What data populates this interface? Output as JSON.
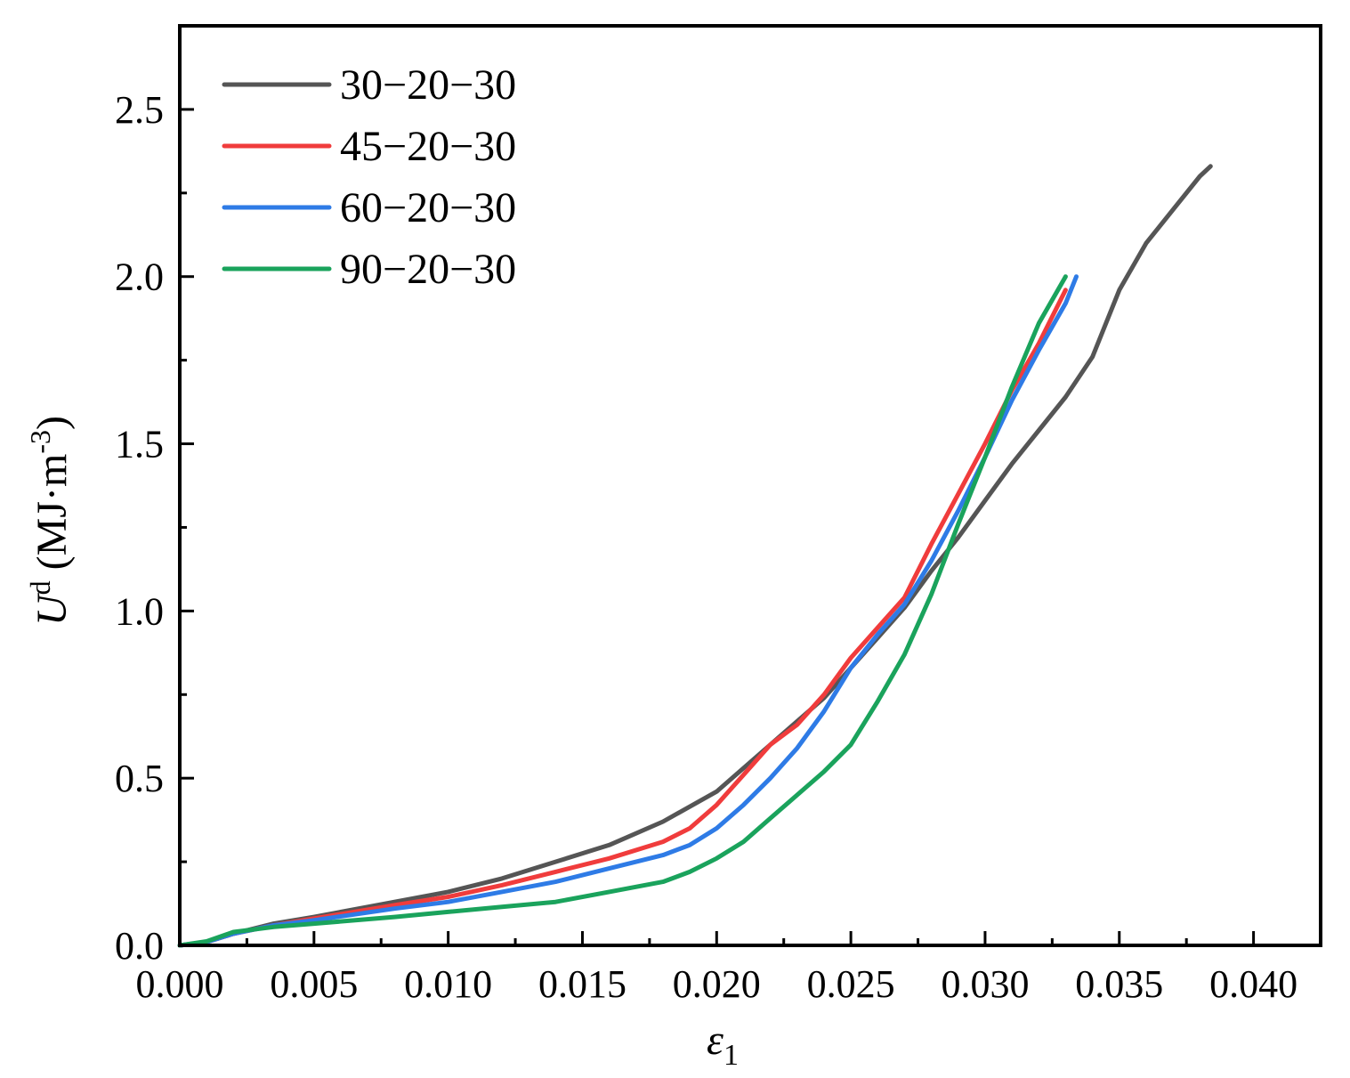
{
  "chart_data": {
    "type": "line",
    "xlabel": "ε",
    "xlabel_sub": "1",
    "ylabel_main": "U",
    "ylabel_sup": "d",
    "ylabel_unit": " (MJ·m",
    "ylabel_unit_sup": "-3",
    "ylabel_close": ")",
    "xlim": [
      0.0,
      0.0425
    ],
    "ylim": [
      0.0,
      2.75
    ],
    "x_ticks": [
      "0.000",
      "0.005",
      "0.010",
      "0.015",
      "0.020",
      "0.025",
      "0.030",
      "0.035",
      "0.040"
    ],
    "x_tick_values": [
      0.0,
      0.005,
      0.01,
      0.015,
      0.02,
      0.025,
      0.03,
      0.035,
      0.04
    ],
    "y_ticks": [
      "0.0",
      "0.5",
      "1.0",
      "1.5",
      "2.0",
      "2.5"
    ],
    "y_tick_values": [
      0.0,
      0.5,
      1.0,
      1.5,
      2.0,
      2.5
    ],
    "grid": false,
    "legend_position": "top-left",
    "series": [
      {
        "name": "30−20−30",
        "color": "#555555",
        "x": [
          0.0,
          0.001,
          0.002,
          0.0035,
          0.005,
          0.008,
          0.01,
          0.012,
          0.014,
          0.016,
          0.018,
          0.02,
          0.022,
          0.024,
          0.026,
          0.027,
          0.028,
          0.029,
          0.03,
          0.031,
          0.032,
          0.033,
          0.034,
          0.035,
          0.036,
          0.037,
          0.038,
          0.0384
        ],
        "y": [
          0.0,
          0.01,
          0.035,
          0.065,
          0.085,
          0.13,
          0.16,
          0.2,
          0.25,
          0.3,
          0.37,
          0.46,
          0.6,
          0.74,
          0.92,
          1.01,
          1.12,
          1.22,
          1.33,
          1.44,
          1.54,
          1.64,
          1.76,
          1.96,
          2.1,
          2.2,
          2.3,
          2.33
        ]
      },
      {
        "name": "45−20−30",
        "color": "#f03c3c",
        "x": [
          0.0,
          0.001,
          0.002,
          0.0035,
          0.005,
          0.008,
          0.01,
          0.012,
          0.014,
          0.016,
          0.018,
          0.019,
          0.02,
          0.021,
          0.022,
          0.023,
          0.024,
          0.025,
          0.026,
          0.027,
          0.028,
          0.029,
          0.03,
          0.031,
          0.032,
          0.033
        ],
        "y": [
          0.0,
          0.01,
          0.035,
          0.06,
          0.08,
          0.12,
          0.145,
          0.18,
          0.22,
          0.26,
          0.31,
          0.35,
          0.42,
          0.51,
          0.6,
          0.66,
          0.75,
          0.86,
          0.95,
          1.04,
          1.2,
          1.35,
          1.5,
          1.66,
          1.8,
          1.96
        ]
      },
      {
        "name": "60−20−30",
        "color": "#2e7be6",
        "x": [
          0.0,
          0.001,
          0.002,
          0.0035,
          0.005,
          0.008,
          0.01,
          0.012,
          0.014,
          0.016,
          0.018,
          0.019,
          0.02,
          0.021,
          0.022,
          0.023,
          0.024,
          0.025,
          0.026,
          0.027,
          0.028,
          0.029,
          0.03,
          0.031,
          0.032,
          0.033,
          0.0334
        ],
        "y": [
          0.0,
          0.01,
          0.035,
          0.06,
          0.075,
          0.11,
          0.13,
          0.16,
          0.19,
          0.23,
          0.27,
          0.3,
          0.35,
          0.42,
          0.5,
          0.59,
          0.7,
          0.83,
          0.93,
          1.02,
          1.15,
          1.3,
          1.46,
          1.63,
          1.78,
          1.92,
          2.0
        ]
      },
      {
        "name": "90−20−30",
        "color": "#1aa35c",
        "x": [
          0.0,
          0.001,
          0.002,
          0.0035,
          0.005,
          0.008,
          0.01,
          0.012,
          0.014,
          0.016,
          0.018,
          0.019,
          0.02,
          0.021,
          0.022,
          0.023,
          0.024,
          0.025,
          0.026,
          0.027,
          0.028,
          0.029,
          0.03,
          0.031,
          0.032,
          0.033
        ],
        "y": [
          0.0,
          0.012,
          0.04,
          0.055,
          0.065,
          0.085,
          0.1,
          0.115,
          0.13,
          0.16,
          0.19,
          0.22,
          0.26,
          0.31,
          0.38,
          0.45,
          0.52,
          0.6,
          0.73,
          0.87,
          1.05,
          1.26,
          1.46,
          1.67,
          1.86,
          2.0
        ]
      }
    ]
  }
}
